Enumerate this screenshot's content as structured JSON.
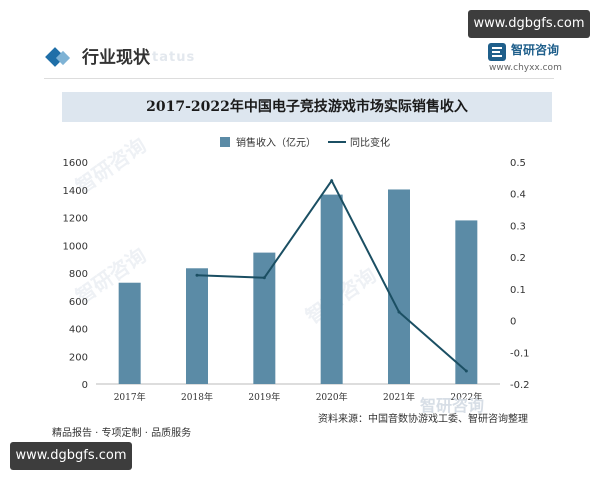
{
  "watermark": {
    "site": "www.dgbgfs.com"
  },
  "section": {
    "title": "行业现状",
    "ghost": "tatus"
  },
  "brand": {
    "name": "智研咨询",
    "url": "www.chyxx.com"
  },
  "footer": {
    "left": "精品报告 · 专项定制 · 品质服务",
    "source": "资料来源：中国音数协游戏工委、智研咨询整理",
    "watermark": "智研咨询"
  },
  "background_watermarks": [
    "智研咨询",
    "智研咨询",
    "智研咨询"
  ],
  "colors": {
    "bar": "#5b8ba6",
    "line": "#1b4f63",
    "title_band": "#dde6ef"
  },
  "chart_data": {
    "type": "bar",
    "title": "2017-2022年中国电子竞技游戏市场实际销售收入",
    "categories": [
      "2017年",
      "2018年",
      "2019年",
      "2020年",
      "2021年",
      "2022年"
    ],
    "series": [
      {
        "name": "销售收入（亿元）",
        "type": "bar",
        "axis": "left",
        "values": [
          730,
          834,
          947,
          1365,
          1402,
          1179
        ]
      },
      {
        "name": "同比变化",
        "type": "line",
        "axis": "right",
        "values": [
          null,
          0.143,
          0.135,
          0.441,
          0.027,
          -0.159
        ]
      }
    ],
    "y_left": {
      "min": 0,
      "max": 1600,
      "ticks": [
        0,
        200,
        400,
        600,
        800,
        1000,
        1200,
        1400,
        1600
      ]
    },
    "y_right": {
      "min": -0.2,
      "max": 0.5,
      "ticks": [
        "-0.2",
        "-0.1",
        "0",
        "0.1",
        "0.2",
        "0.3",
        "0.4",
        "0.5"
      ]
    },
    "legend_position": "top-center",
    "grid": false
  }
}
